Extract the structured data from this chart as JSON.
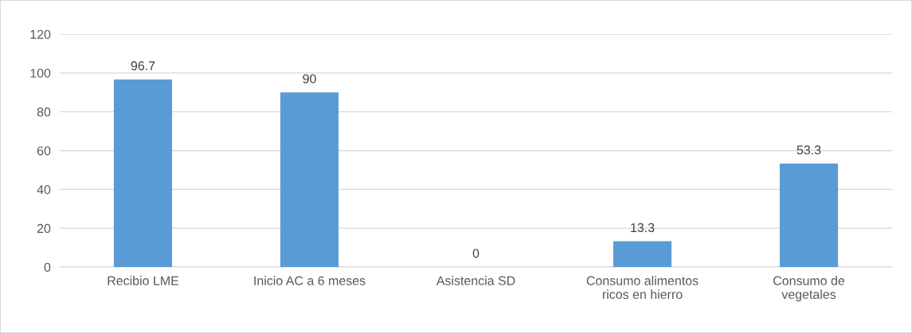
{
  "chart_data": {
    "type": "bar",
    "categories": [
      "Recibio LME",
      "Inicio AC a 6 meses",
      "Asistencia SD",
      "Consumo alimentos\nricos en hierro",
      "Consumo de\nvegetales"
    ],
    "values": [
      96.7,
      90,
      0,
      13.3,
      53.3
    ],
    "color": "#5b9bd5",
    "ylim": [
      0,
      120
    ],
    "yticks": [
      0,
      20,
      40,
      60,
      80,
      100,
      120
    ],
    "grid": "y",
    "data_labels": true
  }
}
